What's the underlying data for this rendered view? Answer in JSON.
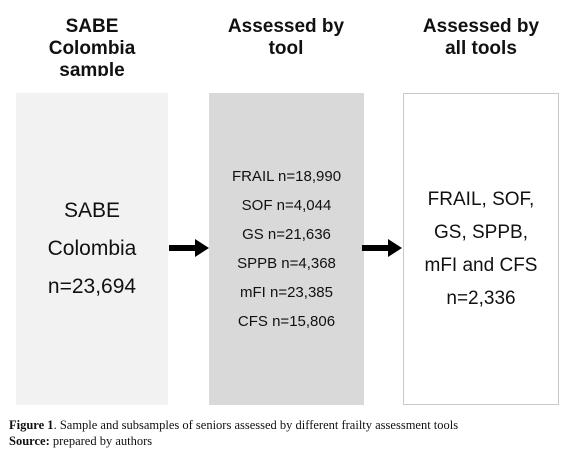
{
  "columns": [
    {
      "heading": [
        "SABE",
        "Colombia",
        "sample"
      ],
      "box_lines": [
        "SABE",
        "Colombia",
        "n=23,694"
      ]
    },
    {
      "heading": [
        "Assessed by",
        "tool"
      ],
      "box_lines": [
        "FRAIL n=18,990",
        "SOF n=4,044",
        "GS n=21,636",
        "SPPB n=4,368",
        "mFI n=23,385",
        "CFS n=15,806"
      ]
    },
    {
      "heading": [
        "Assessed by",
        "all tools"
      ],
      "box_lines": [
        "FRAIL, SOF,",
        "GS, SPPB,",
        "mFI and CFS",
        "n=2,336"
      ]
    }
  ],
  "caption": {
    "figure_label": "Figure 1",
    "figure_text": ". Sample and subsamples of seniors assessed by different frailty assessment tools",
    "source_label": "Source:",
    "source_text": " prepared by authors"
  },
  "colors": {
    "box_1": "#f2f2f2",
    "box_2": "#d9d9d9",
    "box_3": "#ffffff",
    "arrow": "#000000"
  },
  "icons": [
    "right-arrow-icon",
    "right-arrow-icon"
  ]
}
